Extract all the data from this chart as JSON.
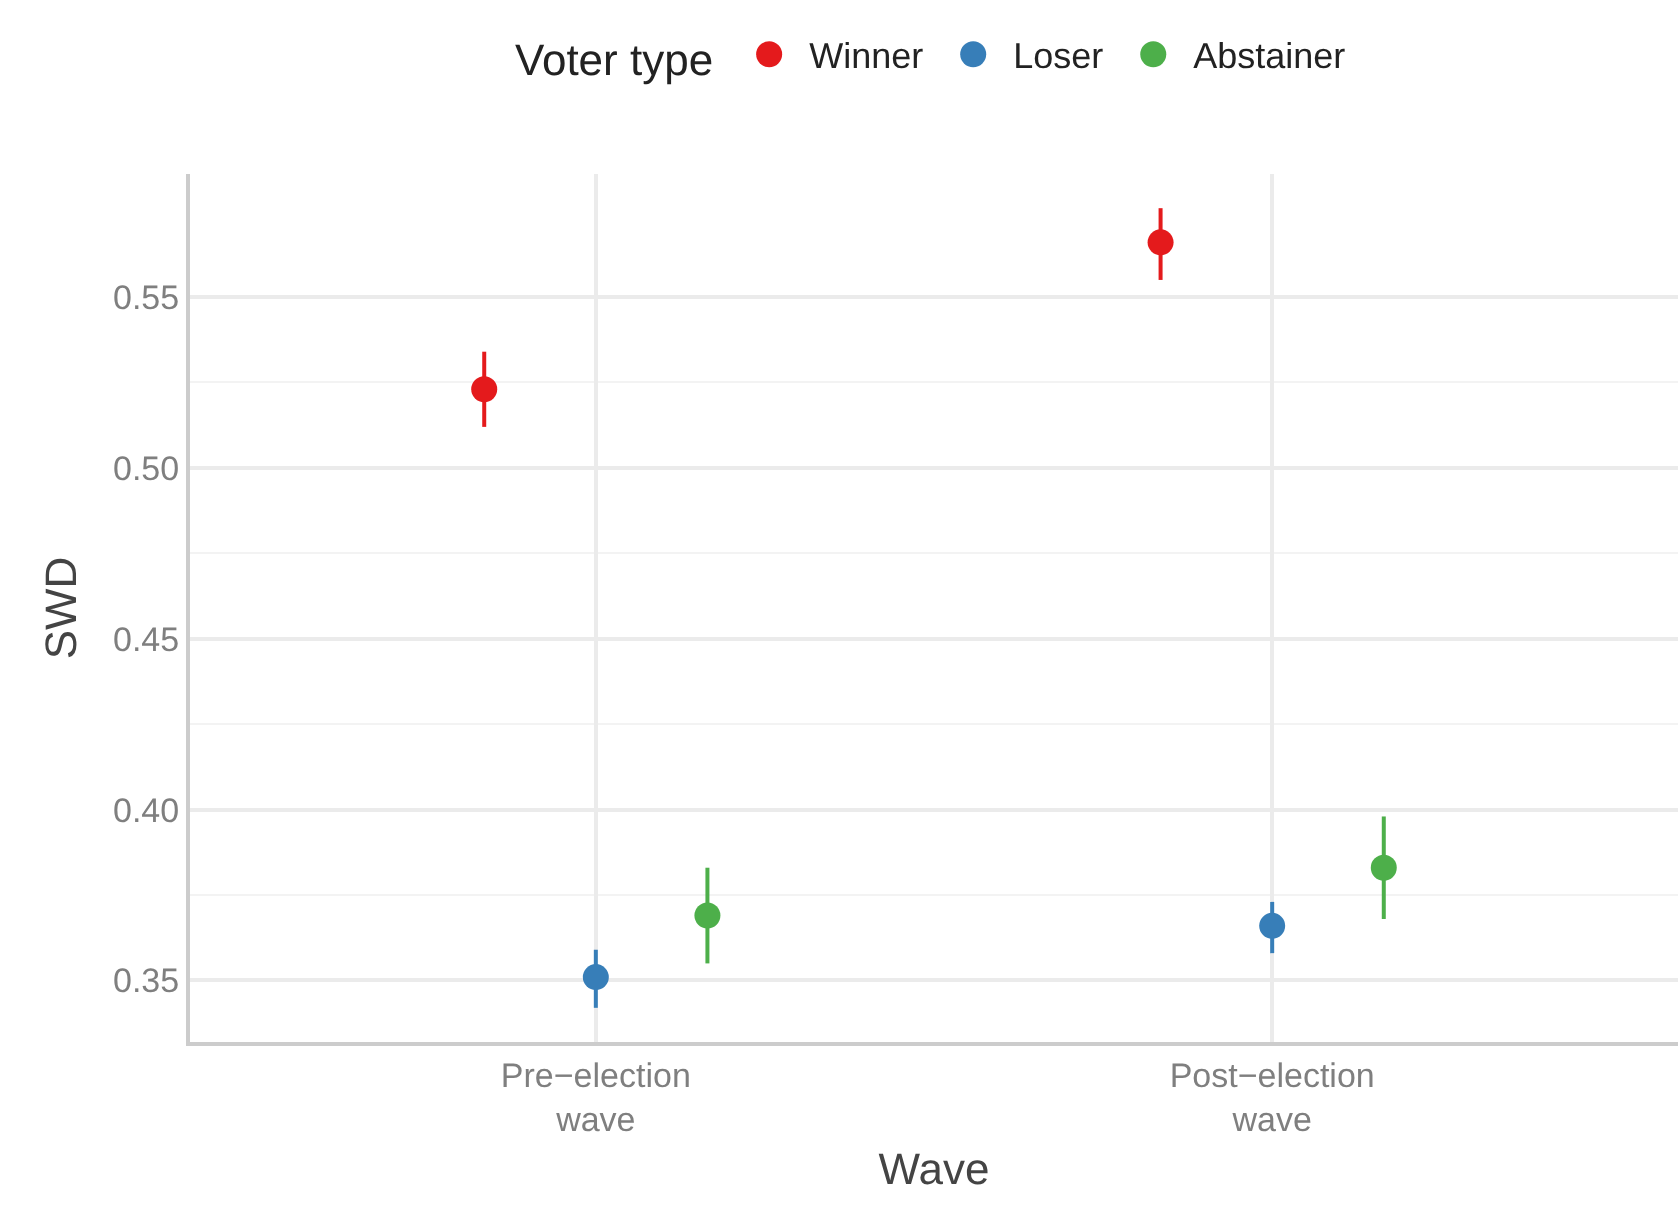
{
  "chart_data": {
    "type": "scatter",
    "xlabel": "Wave",
    "ylabel": "SWD",
    "legend_title": "Voter type",
    "categories": [
      "Pre−election\nwave",
      "Post−election\nwave"
    ],
    "series": [
      {
        "name": "Winner",
        "color": "#e41a1c",
        "values": [
          0.523,
          0.566
        ],
        "errors": [
          [
            0.512,
            0.534
          ],
          [
            0.555,
            0.576
          ]
        ]
      },
      {
        "name": "Loser",
        "color": "#377eb8",
        "values": [
          0.351,
          0.366
        ],
        "errors": [
          [
            0.342,
            0.359
          ],
          [
            0.358,
            0.373
          ]
        ]
      },
      {
        "name": "Abstainer",
        "color": "#4daf4a",
        "values": [
          0.369,
          0.383
        ],
        "errors": [
          [
            0.355,
            0.383
          ],
          [
            0.368,
            0.398
          ]
        ]
      }
    ],
    "ylim": [
      0.332,
      0.586
    ],
    "yticks": [
      0.35,
      {
        "value": 0.4,
        "label": "0.40"
      },
      0.45,
      {
        "value": 0.5,
        "label": "0.50"
      },
      0.55
    ],
    "grid": true,
    "legend": "top",
    "marker": "circle"
  }
}
